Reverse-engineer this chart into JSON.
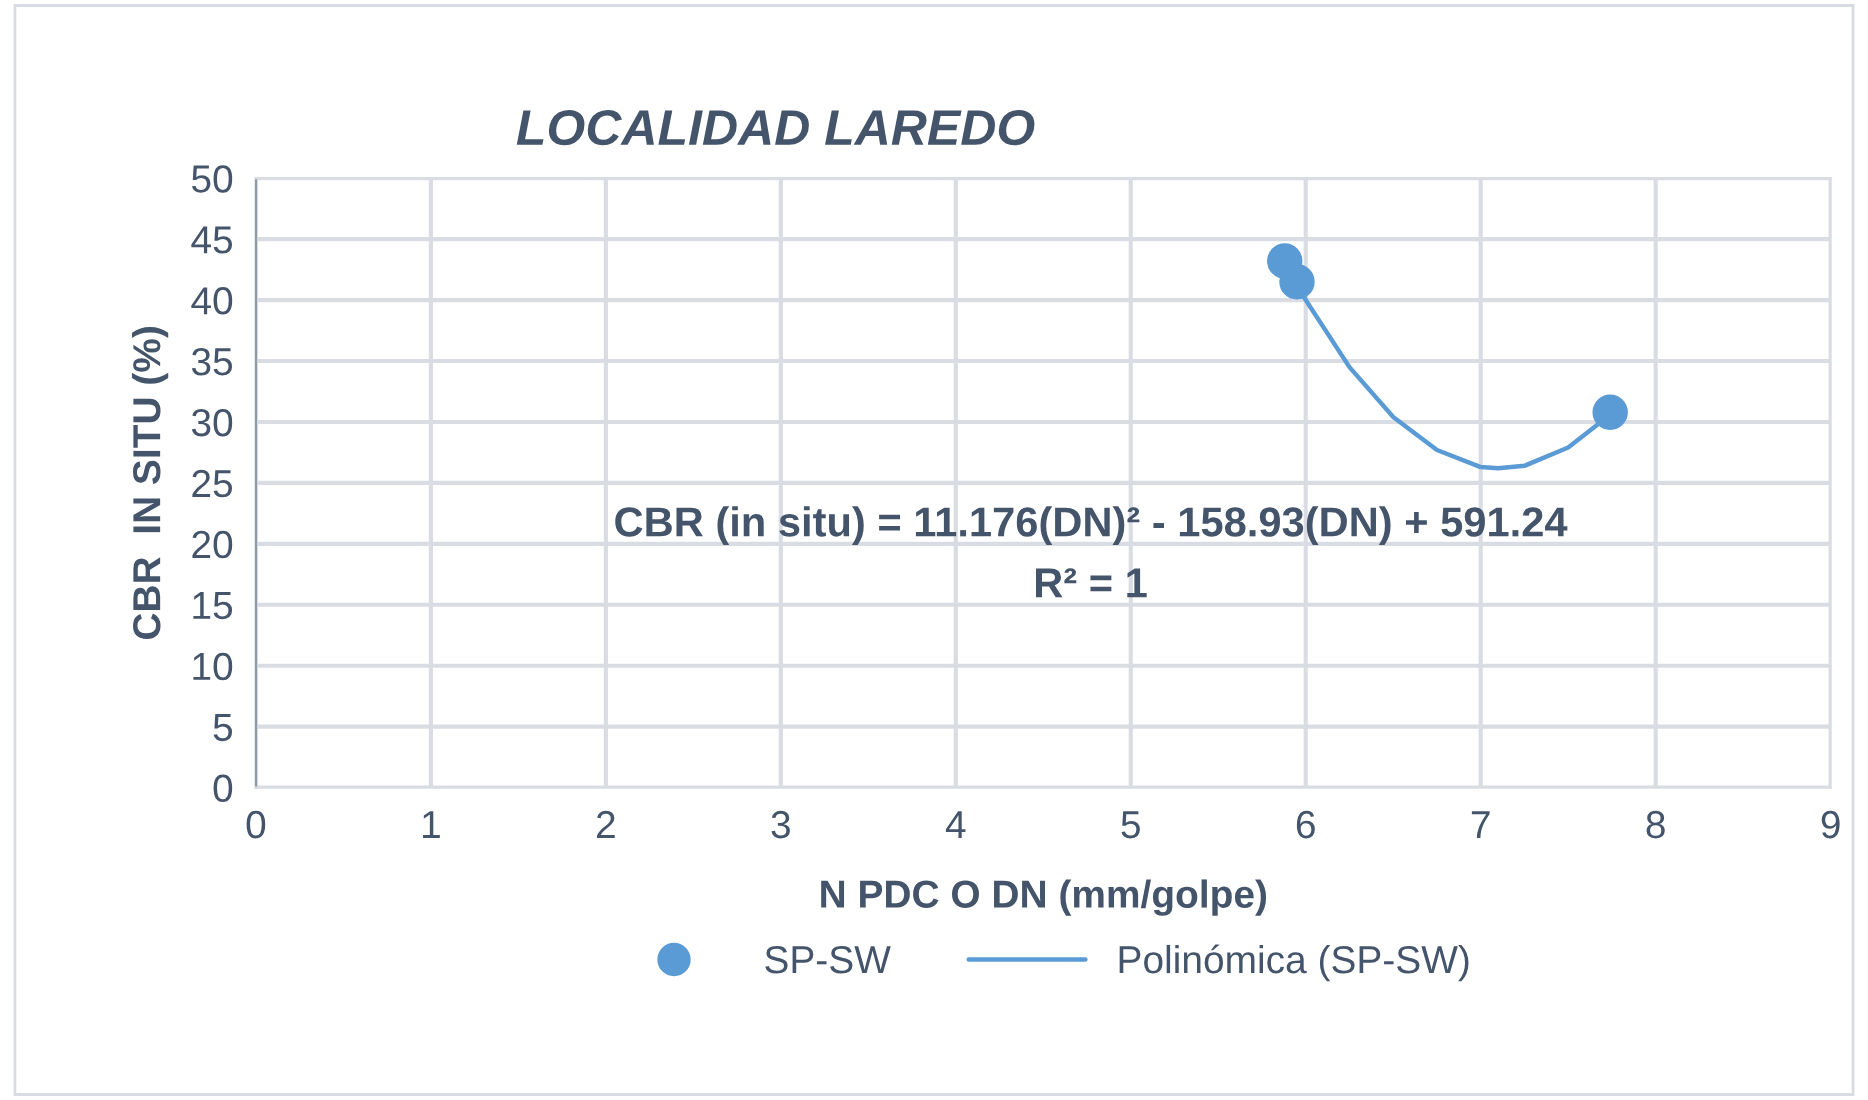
{
  "chart_data": {
    "type": "scatter",
    "title": "LOCALIDAD LAREDO",
    "xlabel": "N PDC O DN (mm/golpe)",
    "ylabel": "CBR  IN SITU (%)",
    "series": [
      {
        "name": "SP-SW",
        "marker": "circle",
        "color": "#5b9bd5",
        "x": [
          5.88,
          5.95,
          7.74
        ],
        "values": [
          43.2,
          41.5,
          30.8
        ]
      },
      {
        "name": "Polinómica (SP-SW)",
        "type": "line",
        "color": "#5b9bd5",
        "x": [
          5.95,
          6.0,
          6.25,
          6.5,
          6.75,
          7.0,
          7.1,
          7.25,
          7.5,
          7.74
        ],
        "values": [
          41.3,
          40.0,
          34.5,
          30.4,
          27.7,
          26.3,
          26.2,
          26.4,
          27.9,
          30.6
        ]
      }
    ],
    "xlim": [
      0,
      9
    ],
    "xticks": [
      0,
      1,
      2,
      3,
      4,
      5,
      6,
      7,
      8,
      9
    ],
    "ylim": [
      0,
      50
    ],
    "yticks": [
      0,
      5,
      10,
      15,
      20,
      25,
      30,
      35,
      40,
      45,
      50
    ],
    "grid": true,
    "legend": "bottom",
    "annotations": [
      "CBR (in situ) = 11.176(DN)² - 158.93(DN) + 591.24",
      "R² = 1"
    ]
  }
}
